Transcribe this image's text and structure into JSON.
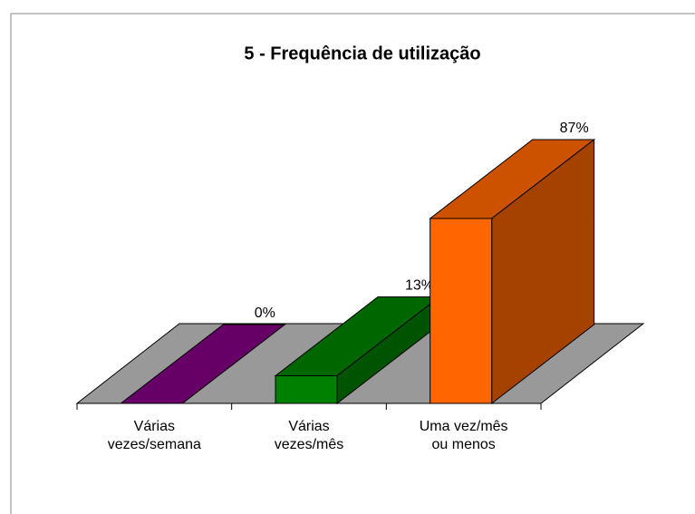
{
  "chart_data": {
    "type": "bar3d",
    "title": "5 - Frequência de utilização",
    "categories": [
      "Várias vezes/semana",
      "Várias vezes/mês",
      "Uma vez/mês ou menos"
    ],
    "values": [
      0,
      13,
      87
    ],
    "value_labels": [
      "0%",
      "13%",
      "87%"
    ],
    "colors": [
      "#660066",
      "#008000",
      "#ff6600"
    ]
  }
}
